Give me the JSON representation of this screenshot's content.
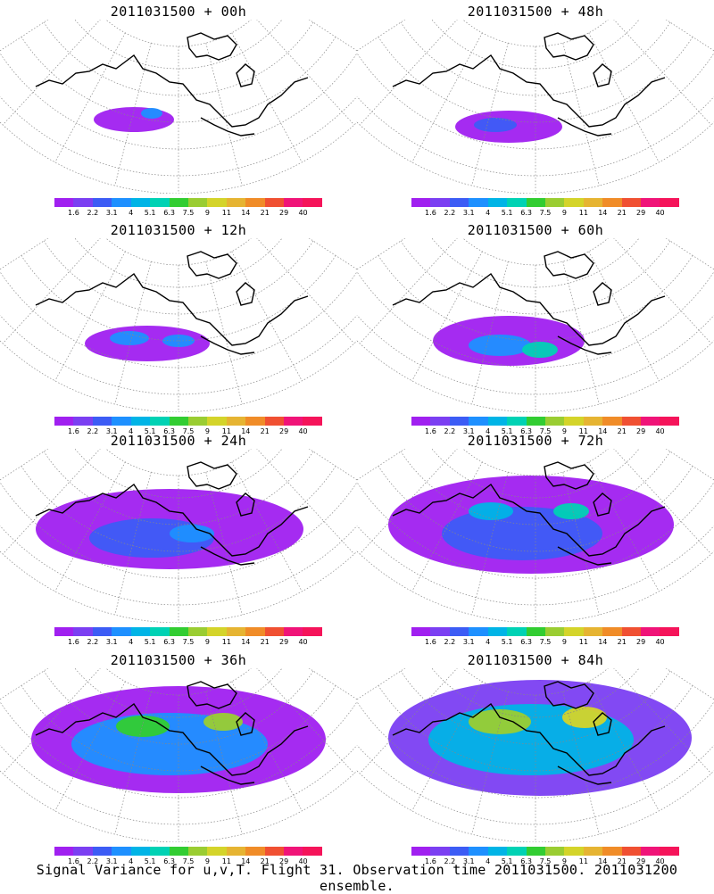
{
  "panels": [
    {
      "title": "2011031500 + 00h",
      "level": 1
    },
    {
      "title": "2011031500 + 48h",
      "level": 5
    },
    {
      "title": "2011031500 + 12h",
      "level": 2
    },
    {
      "title": "2011031500 + 60h",
      "level": 6
    },
    {
      "title": "2011031500 + 24h",
      "level": 3
    },
    {
      "title": "2011031500 + 72h",
      "level": 7
    },
    {
      "title": "2011031500 + 36h",
      "level": 4
    },
    {
      "title": "2011031500 + 84h",
      "level": 8
    }
  ],
  "colorbar": {
    "labels": [
      "1.6",
      "2.2",
      "3.1",
      "4",
      "5.1",
      "6.3",
      "7.5",
      "9",
      "11",
      "14",
      "21",
      "29",
      "40"
    ],
    "colors": [
      "#a020f0",
      "#7b3ff2",
      "#3c5cf5",
      "#1e90ff",
      "#00b4e6",
      "#00d2b4",
      "#32cd32",
      "#9acd32",
      "#d4d42a",
      "#e6b432",
      "#f08c28",
      "#f05032",
      "#f01478",
      "#f5145a"
    ]
  },
  "footer": "Signal Variance for u,v,T. Flight 31. Observation time 2011031500. 2011031200 ensemble."
}
